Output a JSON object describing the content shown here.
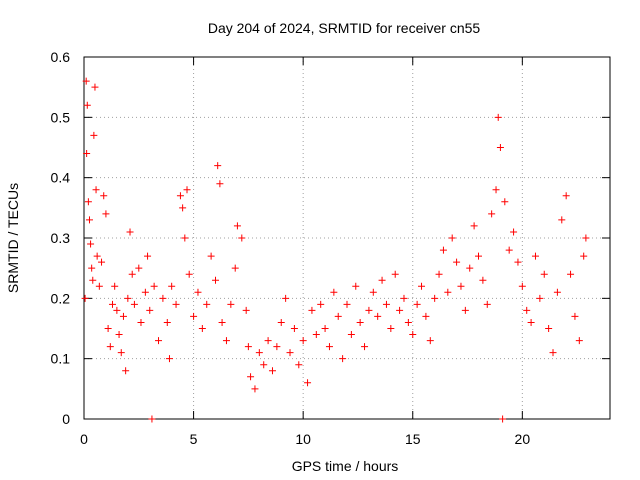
{
  "chart_data": {
    "type": "scatter",
    "title": "Day 204 of 2024, SRMTID for receiver cn55",
    "xlabel": "GPS time / hours",
    "ylabel": "SRMTID / TECUs",
    "xlim": [
      0,
      24
    ],
    "ylim": [
      0,
      0.6
    ],
    "xticks": [
      0,
      5,
      10,
      15,
      20
    ],
    "yticks": [
      0,
      0.1,
      0.2,
      0.3,
      0.4,
      0.5,
      0.6
    ],
    "xtick_labels": [
      "0",
      "5",
      "10",
      "15",
      "20"
    ],
    "ytick_labels": [
      "0",
      "0.1",
      "0.2",
      "0.3",
      "0.4",
      "0.5",
      "0.6"
    ],
    "grid": true,
    "marker": "+",
    "color": "#ff0000",
    "series": [
      {
        "name": "SRMTID",
        "points": [
          [
            0.05,
            0.2
          ],
          [
            0.1,
            0.56
          ],
          [
            0.12,
            0.44
          ],
          [
            0.15,
            0.52
          ],
          [
            0.2,
            0.36
          ],
          [
            0.25,
            0.33
          ],
          [
            0.3,
            0.29
          ],
          [
            0.35,
            0.25
          ],
          [
            0.4,
            0.23
          ],
          [
            0.45,
            0.47
          ],
          [
            0.5,
            0.55
          ],
          [
            0.55,
            0.38
          ],
          [
            0.6,
            0.27
          ],
          [
            0.7,
            0.22
          ],
          [
            0.8,
            0.26
          ],
          [
            0.9,
            0.37
          ],
          [
            1.0,
            0.34
          ],
          [
            1.1,
            0.15
          ],
          [
            1.2,
            0.12
          ],
          [
            1.3,
            0.19
          ],
          [
            1.4,
            0.22
          ],
          [
            1.5,
            0.18
          ],
          [
            1.6,
            0.14
          ],
          [
            1.7,
            0.11
          ],
          [
            1.8,
            0.17
          ],
          [
            1.9,
            0.08
          ],
          [
            2.0,
            0.2
          ],
          [
            2.1,
            0.31
          ],
          [
            2.2,
            0.24
          ],
          [
            2.3,
            0.19
          ],
          [
            2.5,
            0.25
          ],
          [
            2.6,
            0.16
          ],
          [
            2.8,
            0.21
          ],
          [
            2.9,
            0.27
          ],
          [
            3.0,
            0.18
          ],
          [
            3.1,
            0.0
          ],
          [
            3.2,
            0.22
          ],
          [
            3.4,
            0.13
          ],
          [
            3.6,
            0.2
          ],
          [
            3.8,
            0.16
          ],
          [
            3.9,
            0.1
          ],
          [
            4.0,
            0.22
          ],
          [
            4.2,
            0.19
          ],
          [
            4.4,
            0.37
          ],
          [
            4.5,
            0.35
          ],
          [
            4.6,
            0.3
          ],
          [
            4.7,
            0.38
          ],
          [
            4.8,
            0.24
          ],
          [
            5.0,
            0.17
          ],
          [
            5.2,
            0.21
          ],
          [
            5.4,
            0.15
          ],
          [
            5.6,
            0.19
          ],
          [
            5.8,
            0.27
          ],
          [
            6.0,
            0.23
          ],
          [
            6.1,
            0.42
          ],
          [
            6.2,
            0.39
          ],
          [
            6.3,
            0.16
          ],
          [
            6.5,
            0.13
          ],
          [
            6.7,
            0.19
          ],
          [
            6.9,
            0.25
          ],
          [
            7.0,
            0.32
          ],
          [
            7.2,
            0.3
          ],
          [
            7.4,
            0.18
          ],
          [
            7.5,
            0.12
          ],
          [
            7.6,
            0.07
          ],
          [
            7.8,
            0.05
          ],
          [
            8.0,
            0.11
          ],
          [
            8.2,
            0.09
          ],
          [
            8.4,
            0.13
          ],
          [
            8.6,
            0.08
          ],
          [
            8.8,
            0.12
          ],
          [
            9.0,
            0.16
          ],
          [
            9.2,
            0.2
          ],
          [
            9.4,
            0.11
          ],
          [
            9.6,
            0.15
          ],
          [
            9.8,
            0.09
          ],
          [
            10.0,
            0.13
          ],
          [
            10.2,
            0.06
          ],
          [
            10.4,
            0.18
          ],
          [
            10.6,
            0.14
          ],
          [
            10.8,
            0.19
          ],
          [
            11.0,
            0.15
          ],
          [
            11.2,
            0.12
          ],
          [
            11.4,
            0.21
          ],
          [
            11.6,
            0.17
          ],
          [
            11.8,
            0.1
          ],
          [
            12.0,
            0.19
          ],
          [
            12.2,
            0.14
          ],
          [
            12.4,
            0.22
          ],
          [
            12.6,
            0.16
          ],
          [
            12.8,
            0.12
          ],
          [
            13.0,
            0.18
          ],
          [
            13.2,
            0.21
          ],
          [
            13.4,
            0.17
          ],
          [
            13.6,
            0.23
          ],
          [
            13.8,
            0.19
          ],
          [
            14.0,
            0.15
          ],
          [
            14.2,
            0.24
          ],
          [
            14.4,
            0.18
          ],
          [
            14.6,
            0.2
          ],
          [
            14.8,
            0.16
          ],
          [
            15.0,
            0.14
          ],
          [
            15.2,
            0.19
          ],
          [
            15.4,
            0.22
          ],
          [
            15.6,
            0.17
          ],
          [
            15.8,
            0.13
          ],
          [
            16.0,
            0.2
          ],
          [
            16.2,
            0.24
          ],
          [
            16.4,
            0.28
          ],
          [
            16.6,
            0.21
          ],
          [
            16.8,
            0.3
          ],
          [
            17.0,
            0.26
          ],
          [
            17.2,
            0.22
          ],
          [
            17.4,
            0.18
          ],
          [
            17.6,
            0.25
          ],
          [
            17.8,
            0.32
          ],
          [
            18.0,
            0.27
          ],
          [
            18.2,
            0.23
          ],
          [
            18.4,
            0.19
          ],
          [
            18.6,
            0.34
          ],
          [
            18.8,
            0.38
          ],
          [
            18.9,
            0.5
          ],
          [
            19.0,
            0.45
          ],
          [
            19.1,
            0.0
          ],
          [
            19.2,
            0.36
          ],
          [
            19.4,
            0.28
          ],
          [
            19.6,
            0.31
          ],
          [
            19.8,
            0.26
          ],
          [
            20.0,
            0.22
          ],
          [
            20.2,
            0.18
          ],
          [
            20.4,
            0.16
          ],
          [
            20.6,
            0.27
          ],
          [
            20.8,
            0.2
          ],
          [
            21.0,
            0.24
          ],
          [
            21.2,
            0.15
          ],
          [
            21.4,
            0.11
          ],
          [
            21.6,
            0.21
          ],
          [
            21.8,
            0.33
          ],
          [
            22.0,
            0.37
          ],
          [
            22.2,
            0.24
          ],
          [
            22.4,
            0.17
          ],
          [
            22.6,
            0.13
          ],
          [
            22.8,
            0.27
          ],
          [
            22.9,
            0.3
          ]
        ]
      }
    ]
  }
}
